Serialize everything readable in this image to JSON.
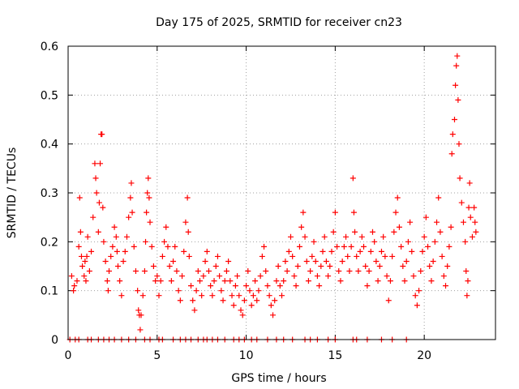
{
  "chart_data": {
    "type": "scatter",
    "title": "Day 175 of 2025, SRMTID for receiver cn23",
    "xlabel": "GPS time / hours",
    "ylabel": "SRMTID / TECUs",
    "xlim": [
      0,
      24
    ],
    "ylim": [
      0,
      0.6
    ],
    "xticks": [
      "0",
      "5",
      "10",
      "15",
      "20"
    ],
    "yticks": [
      "0",
      "0.1",
      "0.2",
      "0.3",
      "0.4",
      "0.5",
      "0.6"
    ],
    "grid": true,
    "marker_color": "#ff0000",
    "zero_values_x": [
      0.1,
      0.4,
      0.6,
      1.1,
      1.3,
      1.7,
      2.0,
      2.3,
      2.6,
      3.0,
      3.4,
      3.8,
      4.3,
      4.6,
      5.1,
      5.3,
      5.9,
      6.3,
      6.6,
      6.9,
      7.3,
      7.6,
      7.8,
      8.1,
      8.4,
      8.8,
      9.3,
      9.6,
      9.9,
      10.3,
      10.6,
      11.2,
      11.7,
      12.1,
      12.6,
      13.3,
      13.6,
      14.0,
      14.6,
      15.0,
      16.0,
      16.2,
      16.8,
      17.6,
      18.2,
      19.0
    ],
    "points": [
      [
        0.2,
        0.13
      ],
      [
        0.3,
        0.1
      ],
      [
        0.35,
        0.11
      ],
      [
        0.5,
        0.12
      ],
      [
        0.6,
        0.19
      ],
      [
        0.65,
        0.29
      ],
      [
        0.7,
        0.22
      ],
      [
        0.75,
        0.17
      ],
      [
        0.8,
        0.15
      ],
      [
        0.9,
        0.13
      ],
      [
        0.95,
        0.16
      ],
      [
        1.0,
        0.12
      ],
      [
        1.05,
        0.17
      ],
      [
        1.1,
        0.21
      ],
      [
        1.2,
        0.14
      ],
      [
        1.3,
        0.18
      ],
      [
        1.4,
        0.25
      ],
      [
        1.5,
        0.36
      ],
      [
        1.55,
        0.33
      ],
      [
        1.6,
        0.3
      ],
      [
        1.7,
        0.22
      ],
      [
        1.75,
        0.28
      ],
      [
        1.8,
        0.36
      ],
      [
        1.85,
        0.42
      ],
      [
        1.9,
        0.42
      ],
      [
        1.95,
        0.27
      ],
      [
        2.0,
        0.2
      ],
      [
        2.1,
        0.16
      ],
      [
        2.2,
        0.12
      ],
      [
        2.25,
        0.1
      ],
      [
        2.3,
        0.14
      ],
      [
        2.4,
        0.17
      ],
      [
        2.5,
        0.19
      ],
      [
        2.6,
        0.23
      ],
      [
        2.7,
        0.21
      ],
      [
        2.75,
        0.18
      ],
      [
        2.8,
        0.15
      ],
      [
        2.9,
        0.12
      ],
      [
        3.0,
        0.09
      ],
      [
        3.1,
        0.16
      ],
      [
        3.2,
        0.18
      ],
      [
        3.3,
        0.21
      ],
      [
        3.4,
        0.25
      ],
      [
        3.5,
        0.29
      ],
      [
        3.55,
        0.32
      ],
      [
        3.6,
        0.26
      ],
      [
        3.7,
        0.19
      ],
      [
        3.8,
        0.14
      ],
      [
        3.9,
        0.1
      ],
      [
        3.95,
        0.06
      ],
      [
        4.0,
        0.05
      ],
      [
        4.05,
        0.02
      ],
      [
        4.1,
        0.05
      ],
      [
        4.2,
        0.09
      ],
      [
        4.3,
        0.14
      ],
      [
        4.35,
        0.2
      ],
      [
        4.4,
        0.26
      ],
      [
        4.45,
        0.3
      ],
      [
        4.5,
        0.33
      ],
      [
        4.55,
        0.29
      ],
      [
        4.6,
        0.24
      ],
      [
        4.7,
        0.19
      ],
      [
        4.8,
        0.15
      ],
      [
        4.9,
        0.12
      ],
      [
        5.0,
        0.13
      ],
      [
        5.1,
        0.09
      ],
      [
        5.2,
        0.12
      ],
      [
        5.3,
        0.17
      ],
      [
        5.4,
        0.2
      ],
      [
        5.5,
        0.23
      ],
      [
        5.6,
        0.19
      ],
      [
        5.7,
        0.15
      ],
      [
        5.8,
        0.12
      ],
      [
        5.9,
        0.16
      ],
      [
        6.0,
        0.19
      ],
      [
        6.1,
        0.14
      ],
      [
        6.2,
        0.1
      ],
      [
        6.3,
        0.08
      ],
      [
        6.4,
        0.13
      ],
      [
        6.5,
        0.18
      ],
      [
        6.6,
        0.24
      ],
      [
        6.7,
        0.29
      ],
      [
        6.75,
        0.22
      ],
      [
        6.8,
        0.17
      ],
      [
        6.9,
        0.11
      ],
      [
        7.0,
        0.08
      ],
      [
        7.1,
        0.06
      ],
      [
        7.2,
        0.1
      ],
      [
        7.3,
        0.14
      ],
      [
        7.4,
        0.12
      ],
      [
        7.5,
        0.09
      ],
      [
        7.6,
        0.13
      ],
      [
        7.7,
        0.16
      ],
      [
        7.8,
        0.18
      ],
      [
        7.9,
        0.14
      ],
      [
        8.0,
        0.11
      ],
      [
        8.1,
        0.09
      ],
      [
        8.2,
        0.12
      ],
      [
        8.3,
        0.15
      ],
      [
        8.4,
        0.17
      ],
      [
        8.5,
        0.13
      ],
      [
        8.6,
        0.1
      ],
      [
        8.7,
        0.08
      ],
      [
        8.8,
        0.12
      ],
      [
        8.9,
        0.14
      ],
      [
        9.0,
        0.16
      ],
      [
        9.1,
        0.12
      ],
      [
        9.2,
        0.09
      ],
      [
        9.3,
        0.07
      ],
      [
        9.4,
        0.11
      ],
      [
        9.5,
        0.13
      ],
      [
        9.6,
        0.09
      ],
      [
        9.7,
        0.06
      ],
      [
        9.8,
        0.05
      ],
      [
        9.9,
        0.08
      ],
      [
        10.0,
        0.11
      ],
      [
        10.1,
        0.14
      ],
      [
        10.2,
        0.1
      ],
      [
        10.3,
        0.07
      ],
      [
        10.4,
        0.09
      ],
      [
        10.5,
        0.12
      ],
      [
        10.6,
        0.08
      ],
      [
        10.7,
        0.1
      ],
      [
        10.8,
        0.13
      ],
      [
        10.9,
        0.17
      ],
      [
        11.0,
        0.19
      ],
      [
        11.1,
        0.14
      ],
      [
        11.2,
        0.11
      ],
      [
        11.3,
        0.09
      ],
      [
        11.4,
        0.07
      ],
      [
        11.5,
        0.05
      ],
      [
        11.6,
        0.08
      ],
      [
        11.7,
        0.12
      ],
      [
        11.8,
        0.15
      ],
      [
        11.9,
        0.11
      ],
      [
        12.0,
        0.09
      ],
      [
        12.1,
        0.12
      ],
      [
        12.2,
        0.16
      ],
      [
        12.3,
        0.14
      ],
      [
        12.4,
        0.18
      ],
      [
        12.5,
        0.21
      ],
      [
        12.6,
        0.17
      ],
      [
        12.7,
        0.13
      ],
      [
        12.8,
        0.11
      ],
      [
        12.9,
        0.15
      ],
      [
        13.0,
        0.19
      ],
      [
        13.1,
        0.23
      ],
      [
        13.2,
        0.26
      ],
      [
        13.3,
        0.21
      ],
      [
        13.4,
        0.16
      ],
      [
        13.5,
        0.12
      ],
      [
        13.6,
        0.14
      ],
      [
        13.7,
        0.17
      ],
      [
        13.8,
        0.2
      ],
      [
        13.9,
        0.16
      ],
      [
        14.0,
        0.13
      ],
      [
        14.1,
        0.11
      ],
      [
        14.2,
        0.15
      ],
      [
        14.3,
        0.18
      ],
      [
        14.4,
        0.21
      ],
      [
        14.5,
        0.16
      ],
      [
        14.6,
        0.13
      ],
      [
        14.7,
        0.15
      ],
      [
        14.8,
        0.18
      ],
      [
        14.9,
        0.22
      ],
      [
        15.0,
        0.26
      ],
      [
        15.1,
        0.19
      ],
      [
        15.2,
        0.14
      ],
      [
        15.3,
        0.12
      ],
      [
        15.4,
        0.16
      ],
      [
        15.5,
        0.19
      ],
      [
        15.6,
        0.21
      ],
      [
        15.7,
        0.17
      ],
      [
        15.8,
        0.14
      ],
      [
        15.9,
        0.19
      ],
      [
        16.0,
        0.33
      ],
      [
        16.05,
        0.26
      ],
      [
        16.1,
        0.22
      ],
      [
        16.2,
        0.17
      ],
      [
        16.3,
        0.14
      ],
      [
        16.4,
        0.18
      ],
      [
        16.5,
        0.21
      ],
      [
        16.6,
        0.19
      ],
      [
        16.7,
        0.15
      ],
      [
        16.8,
        0.11
      ],
      [
        16.9,
        0.14
      ],
      [
        17.0,
        0.18
      ],
      [
        17.1,
        0.22
      ],
      [
        17.2,
        0.2
      ],
      [
        17.3,
        0.16
      ],
      [
        17.4,
        0.12
      ],
      [
        17.5,
        0.15
      ],
      [
        17.6,
        0.18
      ],
      [
        17.7,
        0.21
      ],
      [
        17.8,
        0.17
      ],
      [
        17.9,
        0.13
      ],
      [
        18.0,
        0.08
      ],
      [
        18.1,
        0.12
      ],
      [
        18.2,
        0.17
      ],
      [
        18.3,
        0.22
      ],
      [
        18.4,
        0.26
      ],
      [
        18.5,
        0.29
      ],
      [
        18.6,
        0.23
      ],
      [
        18.7,
        0.19
      ],
      [
        18.8,
        0.15
      ],
      [
        18.9,
        0.12
      ],
      [
        19.0,
        0.16
      ],
      [
        19.1,
        0.2
      ],
      [
        19.2,
        0.24
      ],
      [
        19.3,
        0.18
      ],
      [
        19.4,
        0.13
      ],
      [
        19.5,
        0.09
      ],
      [
        19.6,
        0.07
      ],
      [
        19.7,
        0.1
      ],
      [
        19.8,
        0.14
      ],
      [
        19.9,
        0.18
      ],
      [
        20.0,
        0.21
      ],
      [
        20.1,
        0.25
      ],
      [
        20.2,
        0.19
      ],
      [
        20.3,
        0.15
      ],
      [
        20.4,
        0.12
      ],
      [
        20.5,
        0.16
      ],
      [
        20.6,
        0.2
      ],
      [
        20.7,
        0.24
      ],
      [
        20.8,
        0.29
      ],
      [
        20.9,
        0.22
      ],
      [
        21.0,
        0.17
      ],
      [
        21.1,
        0.13
      ],
      [
        21.2,
        0.11
      ],
      [
        21.3,
        0.15
      ],
      [
        21.4,
        0.19
      ],
      [
        21.5,
        0.23
      ],
      [
        21.55,
        0.38
      ],
      [
        21.6,
        0.42
      ],
      [
        21.7,
        0.45
      ],
      [
        21.75,
        0.52
      ],
      [
        21.8,
        0.56
      ],
      [
        21.85,
        0.58
      ],
      [
        21.9,
        0.49
      ],
      [
        21.95,
        0.4
      ],
      [
        22.0,
        0.33
      ],
      [
        22.1,
        0.28
      ],
      [
        22.2,
        0.24
      ],
      [
        22.3,
        0.2
      ],
      [
        22.35,
        0.14
      ],
      [
        22.4,
        0.09
      ],
      [
        22.45,
        0.12
      ],
      [
        22.5,
        0.27
      ],
      [
        22.55,
        0.32
      ],
      [
        22.6,
        0.25
      ],
      [
        22.7,
        0.21
      ],
      [
        22.8,
        0.27
      ],
      [
        22.85,
        0.24
      ],
      [
        22.9,
        0.22
      ]
    ]
  }
}
